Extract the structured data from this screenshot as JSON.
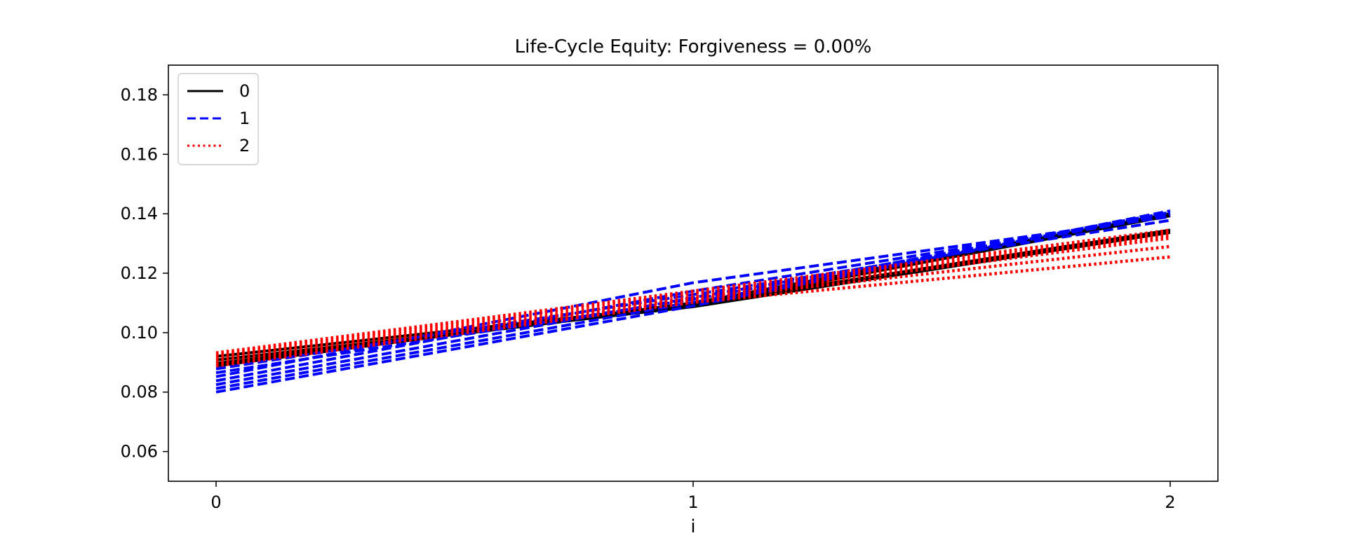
{
  "chart_data": {
    "type": "line",
    "title": "Life-Cycle Equity: Forgiveness = 0.00%",
    "xlabel": "i",
    "ylabel": "",
    "xlim": [
      -0.1,
      2.1
    ],
    "ylim": [
      0.05,
      0.19
    ],
    "xticks": [
      0,
      1,
      2
    ],
    "xtick_labels": [
      "0",
      "1",
      "2"
    ],
    "yticks": [
      0.06,
      0.08,
      0.1,
      0.12,
      0.14,
      0.16,
      0.18
    ],
    "ytick_labels": [
      "0.06",
      "0.08",
      "0.10",
      "0.12",
      "0.14",
      "0.16",
      "0.18"
    ],
    "grid": false,
    "legend_position": "upper-left",
    "x": [
      0,
      1,
      2
    ],
    "series": [
      {
        "name": "0",
        "color": "#000000",
        "style": "solid",
        "lines": [
          [
            0.092,
            0.1095,
            0.1345
          ],
          [
            0.0908,
            0.1087,
            0.1337
          ],
          [
            0.0897,
            0.109,
            0.1393
          ],
          [
            0.0888,
            0.11,
            0.14
          ]
        ]
      },
      {
        "name": "1",
        "color": "#0000ff",
        "style": "dashed",
        "lines": [
          [
            0.08,
            0.109,
            0.141
          ],
          [
            0.0812,
            0.1102,
            0.1402
          ],
          [
            0.0825,
            0.1118,
            0.1395
          ],
          [
            0.0838,
            0.114,
            0.1395
          ],
          [
            0.0852,
            0.1168,
            0.139
          ],
          [
            0.0865,
            0.1112,
            0.1405
          ],
          [
            0.0878,
            0.1128,
            0.1378
          ]
        ]
      },
      {
        "name": "2",
        "color": "#ff0000",
        "style": "dotted",
        "lines": [
          [
            0.0888,
            0.1102,
            0.1255
          ],
          [
            0.0898,
            0.111,
            0.129
          ],
          [
            0.0908,
            0.1115,
            0.1318
          ],
          [
            0.0917,
            0.112,
            0.1328
          ],
          [
            0.0925,
            0.1132,
            0.1335
          ],
          [
            0.0932,
            0.114,
            0.1345
          ]
        ]
      }
    ]
  }
}
